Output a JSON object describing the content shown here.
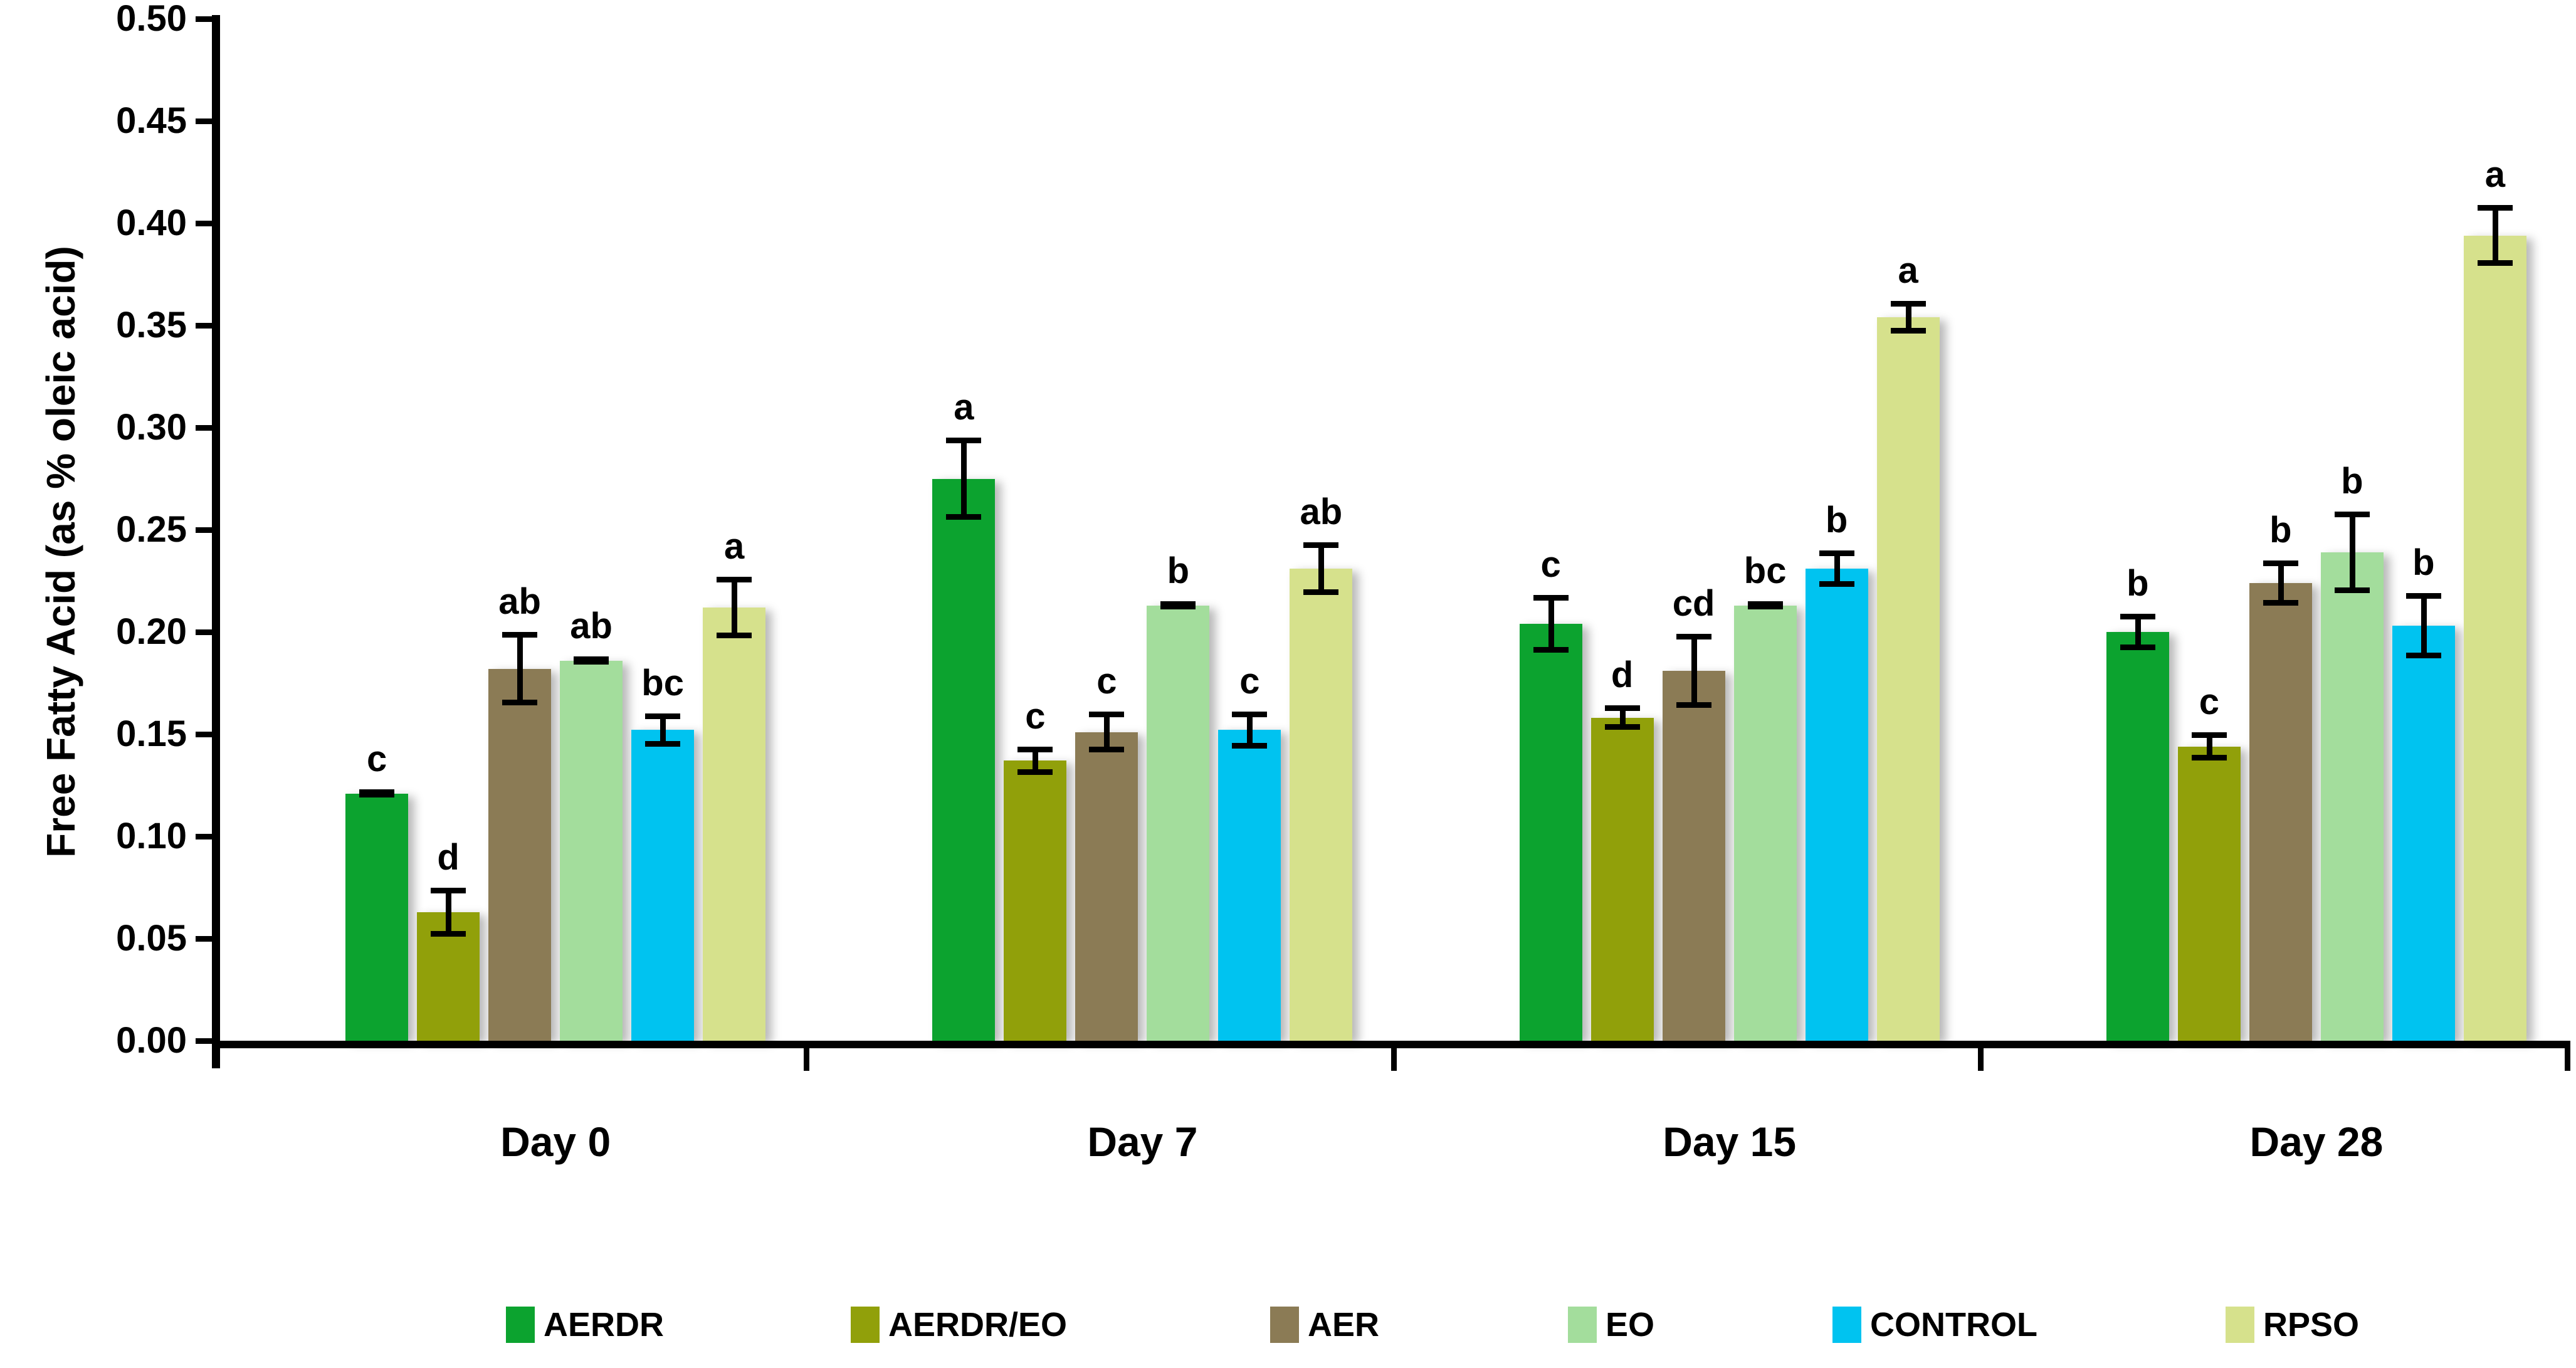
{
  "chart_data": {
    "type": "bar",
    "title": "",
    "xlabel": "",
    "ylabel": "Free Fatty Acid (as % oleic acid)",
    "ylim": [
      0,
      0.5
    ],
    "ytick_step": 0.05,
    "ytick_labels": [
      "0.00",
      "0.05",
      "0.10",
      "0.15",
      "0.20",
      "0.25",
      "0.30",
      "0.35",
      "0.40",
      "0.45",
      "0.50"
    ],
    "categories": [
      "Day 0",
      "Day 7",
      "Day 15",
      "Day 28"
    ],
    "grid": false,
    "legend_position": "bottom",
    "error_bars": true,
    "series": [
      {
        "name": "AERDR",
        "color": "#0ca32f",
        "values": [
          0.121,
          0.275,
          0.204,
          0.2
        ],
        "errors": [
          0.002,
          0.02,
          0.014,
          0.009
        ],
        "letters": [
          "c",
          "a",
          "c",
          "b"
        ]
      },
      {
        "name": "AERDR/EO",
        "color": "#91a00a",
        "values": [
          0.063,
          0.137,
          0.158,
          0.144
        ],
        "errors": [
          0.012,
          0.007,
          0.006,
          0.007
        ],
        "letters": [
          "d",
          "c",
          "d",
          "c"
        ]
      },
      {
        "name": "AER",
        "color": "#8b7b55",
        "values": [
          0.182,
          0.151,
          0.181,
          0.224
        ],
        "errors": [
          0.018,
          0.01,
          0.018,
          0.011
        ],
        "letters": [
          "ab",
          "c",
          "cd",
          "b"
        ]
      },
      {
        "name": "EO",
        "color": "#a3dd9c",
        "values": [
          0.186,
          0.213,
          0.213,
          0.239
        ],
        "errors": [
          0.002,
          0.002,
          0.002,
          0.02
        ],
        "letters": [
          "ab",
          "b",
          "bc",
          "b"
        ]
      },
      {
        "name": "CONTROL",
        "color": "#00c3f0",
        "values": [
          0.152,
          0.152,
          0.231,
          0.203
        ],
        "errors": [
          0.008,
          0.009,
          0.009,
          0.016
        ],
        "letters": [
          "bc",
          "c",
          "b",
          "b"
        ]
      },
      {
        "name": "RPSO",
        "color": "#d6e18c",
        "values": [
          0.212,
          0.231,
          0.354,
          0.394
        ],
        "errors": [
          0.015,
          0.013,
          0.008,
          0.015
        ],
        "letters": [
          "a",
          "ab",
          "a",
          "a"
        ]
      }
    ]
  }
}
